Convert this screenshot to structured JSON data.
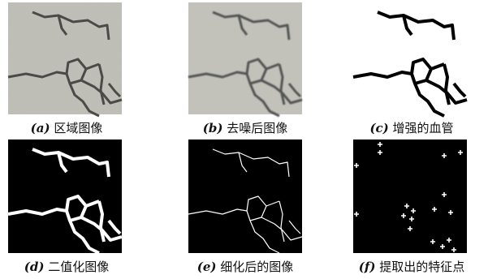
{
  "panels": [
    {
      "label": "(a)",
      "caption": "区域图像"
    },
    {
      "label": "(b)",
      "caption": "去噪后图像"
    },
    {
      "label": "(c)",
      "caption": "增强的血管"
    },
    {
      "label": "(d)",
      "caption": "二值化图像"
    },
    {
      "label": "(e)",
      "caption": "细化后的图像"
    },
    {
      "label": "(f)",
      "caption": "提取出的特征点"
    }
  ]
}
